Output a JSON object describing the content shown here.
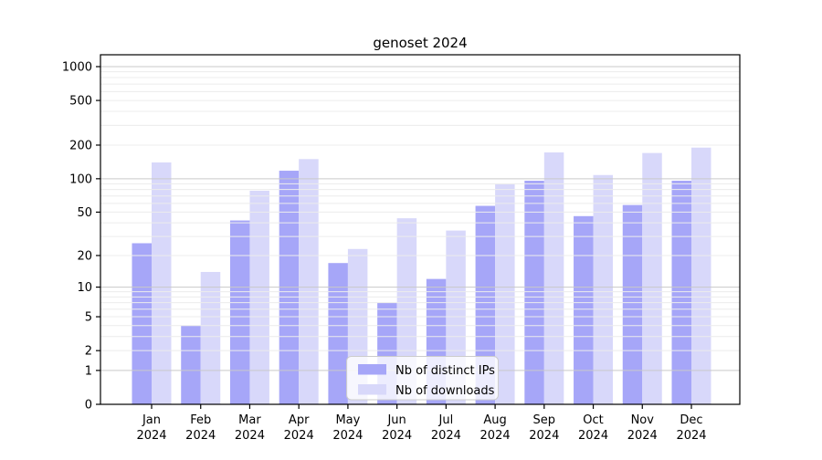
{
  "chart_data": {
    "type": "bar",
    "title": "genoset 2024",
    "categories": [
      "Jan",
      "Feb",
      "Mar",
      "Apr",
      "May",
      "Jun",
      "Jul",
      "Aug",
      "Sep",
      "Oct",
      "Nov",
      "Dec"
    ],
    "category_year": "2024",
    "series": [
      {
        "name": "Nb of distinct IPs",
        "color": "#a6a6f8",
        "values": [
          26,
          4,
          42,
          118,
          17,
          7,
          12,
          57,
          96,
          46,
          58,
          96
        ]
      },
      {
        "name": "Nb of downloads",
        "color": "#d8d8fa",
        "values": [
          140,
          14,
          78,
          150,
          23,
          44,
          34,
          89,
          172,
          108,
          170,
          190
        ]
      }
    ],
    "xlabel": "",
    "ylabel": "",
    "yaxis": {
      "scale": "log(1+v)",
      "tick_values": [
        0,
        1,
        2,
        5,
        10,
        20,
        50,
        100,
        200,
        500,
        1000
      ],
      "tick_labels": [
        "0",
        "1",
        "2",
        "5",
        "10",
        "20",
        "50",
        "100",
        "200",
        "500",
        "1000"
      ],
      "top_value": 1276
    },
    "grid": {
      "on": true,
      "major_color": "#c9c9c9",
      "minor_color": "#ececec"
    },
    "legend": {
      "position": "inside-bottom-center",
      "background": "rgba(255,255,255,0.8)",
      "border_color": "#cccccc"
    },
    "spine_color": "#000000"
  }
}
